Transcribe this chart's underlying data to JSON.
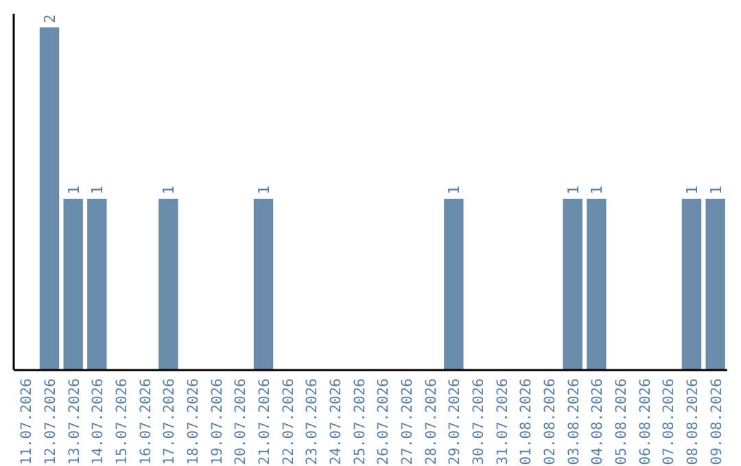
{
  "chart_data": {
    "type": "bar",
    "categories": [
      "11.07.2026",
      "12.07.2026",
      "13.07.2026",
      "14.07.2026",
      "15.07.2026",
      "16.07.2026",
      "17.07.2026",
      "18.07.2026",
      "19.07.2026",
      "20.07.2026",
      "21.07.2026",
      "22.07.2026",
      "23.07.2026",
      "24.07.2026",
      "25.07.2026",
      "26.07.2026",
      "27.07.2026",
      "28.07.2026",
      "29.07.2026",
      "30.07.2026",
      "31.07.2026",
      "01.08.2026",
      "02.08.2026",
      "03.08.2026",
      "04.08.2026",
      "05.08.2026",
      "06.08.2026",
      "07.08.2026",
      "08.08.2026",
      "09.08.2026"
    ],
    "values": [
      0,
      2,
      1,
      1,
      0,
      0,
      1,
      0,
      0,
      0,
      1,
      0,
      0,
      0,
      0,
      0,
      0,
      0,
      1,
      0,
      0,
      0,
      0,
      1,
      1,
      0,
      0,
      0,
      1,
      1
    ],
    "value_labels": [
      null,
      "2",
      "1",
      "1",
      null,
      null,
      "1",
      null,
      null,
      null,
      "1",
      null,
      null,
      null,
      null,
      null,
      null,
      null,
      "1",
      null,
      null,
      null,
      null,
      "1",
      "1",
      null,
      null,
      null,
      "1",
      "1"
    ],
    "color": "#6a8caa",
    "tick_labels": "x",
    "grid": false
  }
}
